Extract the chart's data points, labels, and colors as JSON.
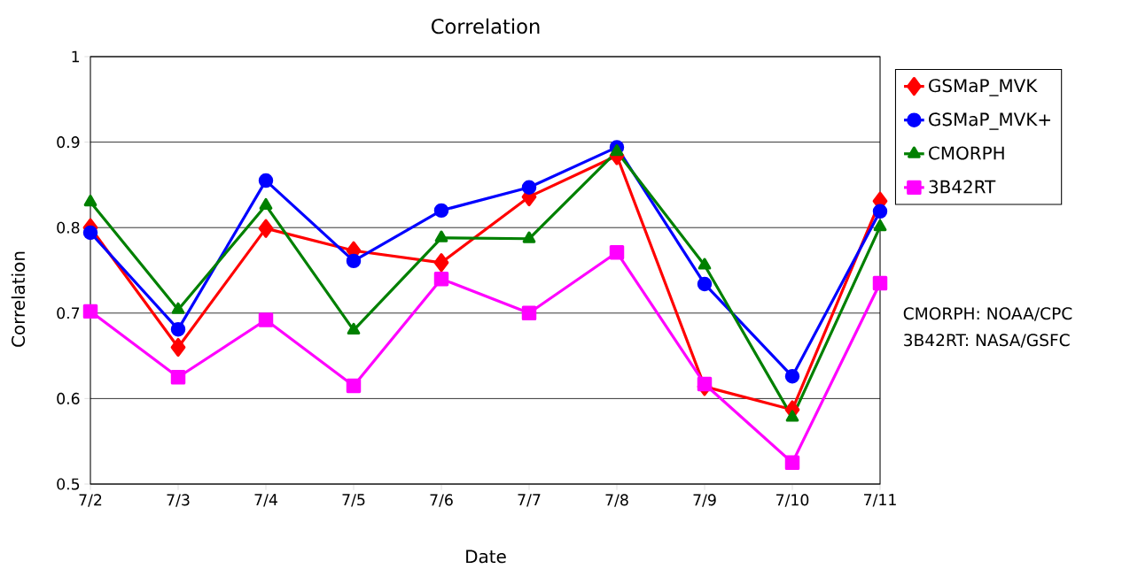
{
  "chart_data": {
    "type": "line",
    "title": "Correlation",
    "xlabel": "Date",
    "ylabel": "Correlation",
    "categories": [
      "7/2",
      "7/3",
      "7/4",
      "7/5",
      "7/6",
      "7/7",
      "7/8",
      "7/9",
      "7/10",
      "7/11"
    ],
    "series": [
      {
        "name": "GSMaP_MVK",
        "color": "#ff0000",
        "marker": "diamond",
        "values": [
          0.8,
          0.66,
          0.799,
          0.773,
          0.759,
          0.836,
          0.884,
          0.614,
          0.587,
          0.831
        ]
      },
      {
        "name": "GSMaP_MVK+",
        "color": "#0000ff",
        "marker": "circle",
        "values": [
          0.794,
          0.681,
          0.855,
          0.761,
          0.82,
          0.847,
          0.894,
          0.734,
          0.626,
          0.819
        ]
      },
      {
        "name": "CMORPH",
        "color": "#008000",
        "marker": "triangle",
        "values": [
          0.83,
          0.704,
          0.826,
          0.68,
          0.788,
          0.787,
          0.889,
          0.756,
          0.578,
          0.801
        ]
      },
      {
        "name": "3B42RT",
        "color": "#ff00ff",
        "marker": "square",
        "values": [
          0.702,
          0.625,
          0.692,
          0.615,
          0.74,
          0.7,
          0.771,
          0.617,
          0.525,
          0.735
        ]
      }
    ],
    "ylim": [
      0.5,
      1
    ],
    "yticks": [
      0.5,
      0.6,
      0.7,
      0.8,
      0.9,
      1
    ],
    "grid": "y",
    "legend": "right",
    "line_style": "solid",
    "annotations": [
      "CMORPH: NOAA/CPC",
      "3B42RT: NASA/GSFC"
    ]
  }
}
